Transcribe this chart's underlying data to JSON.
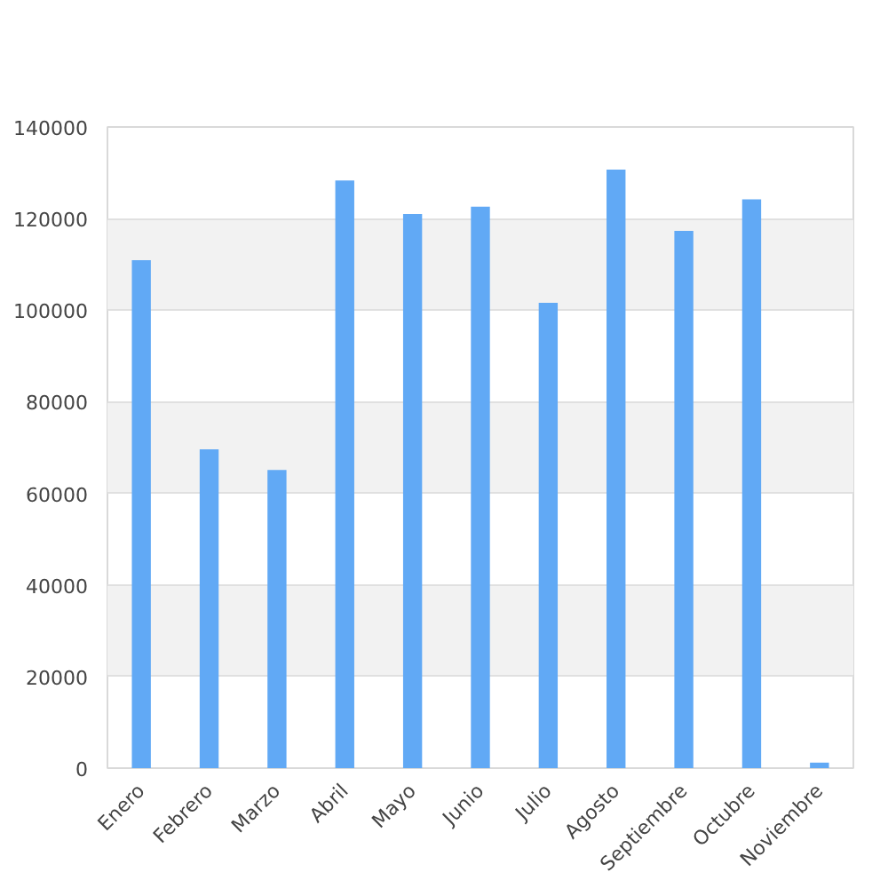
{
  "chart_data": {
    "type": "bar",
    "categories": [
      "Enero",
      "Febrero",
      "Marzo",
      "Abril",
      "Mayo",
      "Junio",
      "Julio",
      "Agosto",
      "Septiembre",
      "Octubre",
      "Noviembre"
    ],
    "values": [
      110900,
      69600,
      65100,
      128300,
      121000,
      122600,
      101600,
      130700,
      117300,
      124200,
      1200
    ],
    "color": "#61a9f5",
    "ylim": [
      0,
      140000
    ],
    "yticks": [
      0,
      20000,
      40000,
      60000,
      80000,
      100000,
      120000,
      140000
    ],
    "grid": "y"
  }
}
